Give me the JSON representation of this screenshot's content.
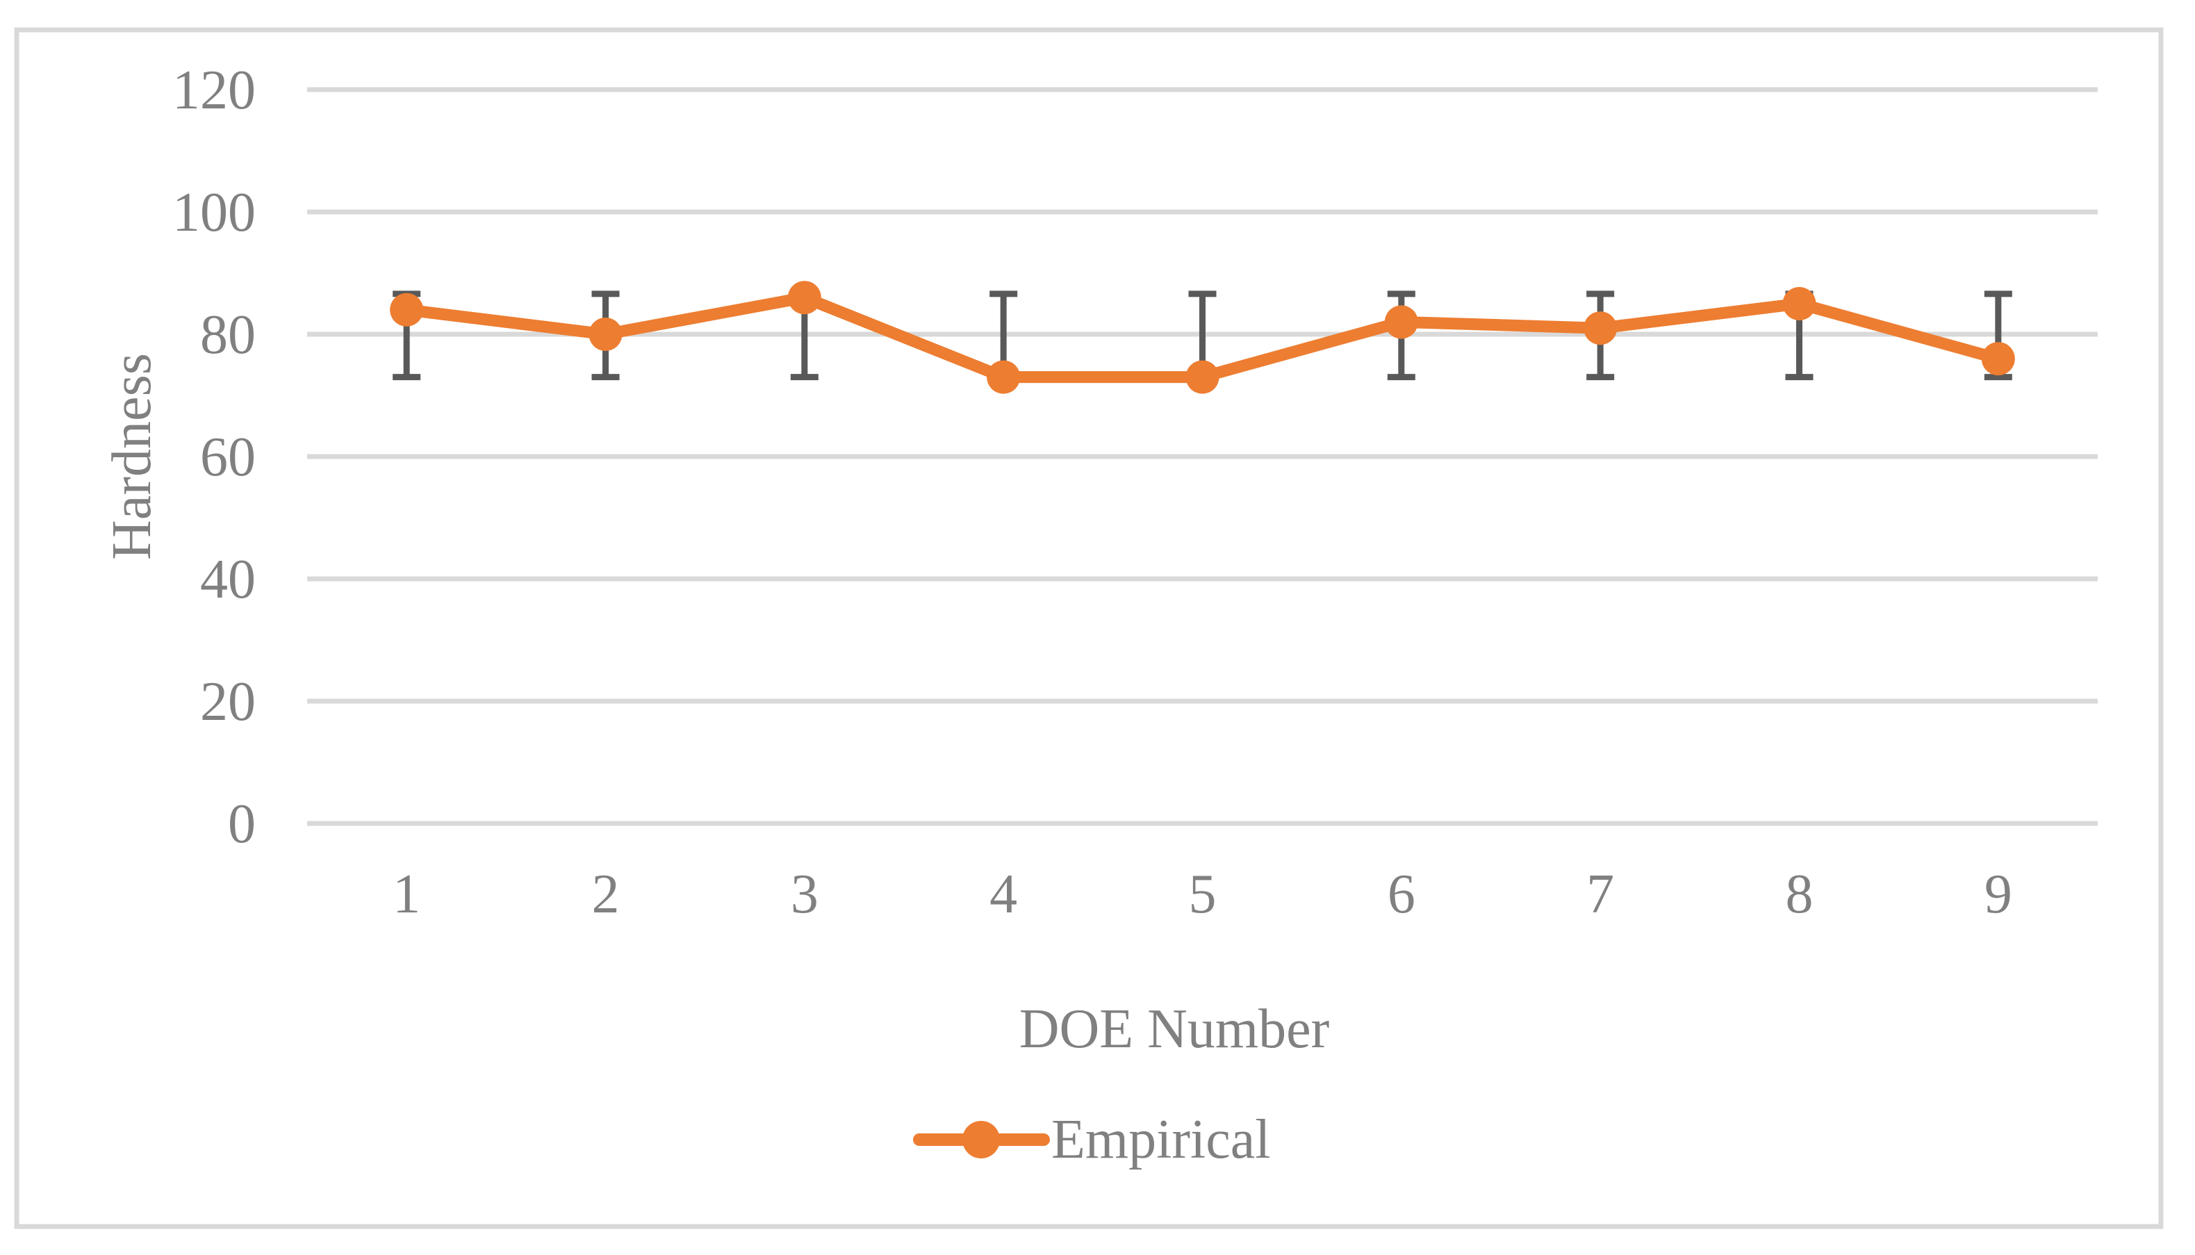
{
  "figure": {
    "background": "#FFFFFF",
    "border_color": "#D9D9D9"
  },
  "chart_data": {
    "type": "line",
    "title": "",
    "xlabel": "DOE Number",
    "ylabel": "Hardness",
    "categories": [
      "1",
      "2",
      "3",
      "4",
      "5",
      "6",
      "7",
      "8",
      "9"
    ],
    "series": [
      {
        "name": "Empirical",
        "color": "#ED7D31",
        "marker": "circle",
        "values": [
          84,
          80,
          86,
          73,
          73,
          82,
          81,
          85,
          76
        ]
      }
    ],
    "error_bars": {
      "applies_to": "every point, identical fixed range",
      "low": 73,
      "high": 86.6,
      "color": "#595959"
    },
    "ylim": [
      0,
      120
    ],
    "yticks": [
      0,
      20,
      40,
      60,
      80,
      100,
      120
    ],
    "ytick_interval": 20,
    "grid": "horizontal",
    "gridline_color": "#D9D9D9",
    "legend_position": "bottom-center",
    "text_color": "#808080"
  }
}
